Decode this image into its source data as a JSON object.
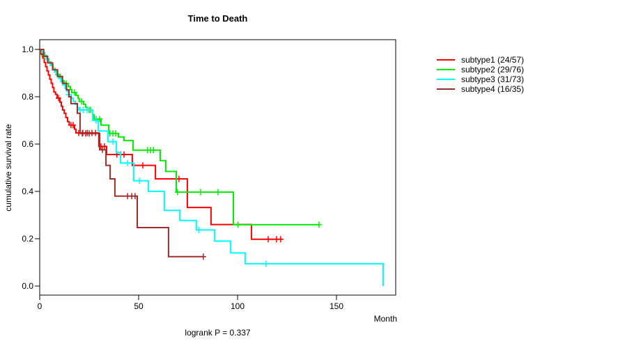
{
  "title": "Time to Death",
  "footer": "logrank P = 0.337",
  "y_axis": {
    "label": "cumulative survival rate",
    "tick_values": [
      1.0,
      0.8,
      0.6,
      0.4,
      0.2,
      0.0
    ],
    "tick_labels": [
      "1.0",
      "0.8",
      "0.6",
      "0.4",
      "0.2",
      "0.0"
    ],
    "range": [
      0.0,
      1.0
    ]
  },
  "x_axis": {
    "label": "Month",
    "tick_values": [
      0,
      50,
      100,
      150
    ],
    "tick_labels": [
      "0",
      "50",
      "100",
      "150"
    ],
    "range": [
      0,
      180
    ]
  },
  "legend": {
    "entries": [
      {
        "label": "subtype1 (24/57)",
        "color": "#FF0000"
      },
      {
        "label": "subtype2 (29/76)",
        "color": "#00EE00"
      },
      {
        "label": "subtype3 (31/73)",
        "color": "#00FFFF"
      },
      {
        "label": "subtype4 (16/35)",
        "color": "#A52A2A"
      }
    ]
  },
  "chart_data": {
    "type": "line",
    "title": "Time to Death",
    "xlabel": "Month",
    "ylabel": "cumulative survival rate",
    "xlim": [
      0,
      180
    ],
    "ylim": [
      0.0,
      1.0
    ],
    "grid": false,
    "legend_position": "right-outside",
    "annotation": "logrank P = 0.337",
    "curve_style": "kaplan-meier step-after with + censor marks",
    "series": [
      {
        "name": "subtype1 (24/57)",
        "color": "#FF0000",
        "steps": [
          [
            0,
            1.0
          ],
          [
            0.7,
            0.98
          ],
          [
            1.6,
            0.963
          ],
          [
            2.3,
            0.945
          ],
          [
            3,
            0.927
          ],
          [
            3.7,
            0.909
          ],
          [
            4.4,
            0.892
          ],
          [
            5.1,
            0.874
          ],
          [
            5.8,
            0.857
          ],
          [
            6.5,
            0.839
          ],
          [
            7.2,
            0.82
          ],
          [
            8,
            0.81
          ],
          [
            8.8,
            0.794
          ],
          [
            10.2,
            0.777
          ],
          [
            10.9,
            0.76
          ],
          [
            11.6,
            0.744
          ],
          [
            12.4,
            0.73
          ],
          [
            13.2,
            0.712
          ],
          [
            14.1,
            0.695
          ],
          [
            14.9,
            0.68
          ],
          [
            17.6,
            0.663
          ],
          [
            18.3,
            0.647
          ],
          [
            29.9,
            0.59
          ],
          [
            33.8,
            0.556
          ],
          [
            46.8,
            0.51
          ],
          [
            58.5,
            0.453
          ],
          [
            74.6,
            0.332
          ],
          [
            86.6,
            0.26
          ],
          [
            107,
            0.198
          ],
          [
            122.5,
            0.198
          ]
        ],
        "censors": [
          [
            1.3,
            0.982
          ],
          [
            9.5,
            0.794
          ],
          [
            15.8,
            0.68
          ],
          [
            16.9,
            0.68
          ],
          [
            19.7,
            0.647
          ],
          [
            21.8,
            0.647
          ],
          [
            24,
            0.647
          ],
          [
            26.4,
            0.647
          ],
          [
            28.2,
            0.647
          ],
          [
            31,
            0.59
          ],
          [
            32.7,
            0.59
          ],
          [
            39,
            0.556
          ],
          [
            41,
            0.556
          ],
          [
            42.6,
            0.556
          ],
          [
            52.1,
            0.51
          ],
          [
            70.4,
            0.453
          ],
          [
            115.5,
            0.198
          ],
          [
            119.7,
            0.198
          ],
          [
            121.8,
            0.198
          ]
        ]
      },
      {
        "name": "subtype2 (29/76)",
        "color": "#00EE00",
        "steps": [
          [
            0,
            1.0
          ],
          [
            1.1,
            0.987
          ],
          [
            2.5,
            0.974
          ],
          [
            3.5,
            0.96
          ],
          [
            4.6,
            0.947
          ],
          [
            5.6,
            0.934
          ],
          [
            6.7,
            0.92
          ],
          [
            7.7,
            0.907
          ],
          [
            8.5,
            0.894
          ],
          [
            10.2,
            0.88
          ],
          [
            11.3,
            0.868
          ],
          [
            12.3,
            0.856
          ],
          [
            14.4,
            0.843
          ],
          [
            15.5,
            0.83
          ],
          [
            16.2,
            0.818
          ],
          [
            18.3,
            0.806
          ],
          [
            19.4,
            0.793
          ],
          [
            20,
            0.78
          ],
          [
            22.2,
            0.768
          ],
          [
            23.2,
            0.756
          ],
          [
            23.9,
            0.744
          ],
          [
            26.8,
            0.724
          ],
          [
            27.5,
            0.706
          ],
          [
            31,
            0.68
          ],
          [
            34.9,
            0.645
          ],
          [
            39.8,
            0.63
          ],
          [
            42.6,
            0.615
          ],
          [
            47.2,
            0.574
          ],
          [
            60.9,
            0.53
          ],
          [
            63.7,
            0.484
          ],
          [
            69,
            0.397
          ],
          [
            97.9,
            0.259
          ],
          [
            141.2,
            0.259
          ]
        ],
        "censors": [
          [
            2.1,
            0.974
          ],
          [
            9.2,
            0.894
          ],
          [
            13.4,
            0.856
          ],
          [
            17.6,
            0.818
          ],
          [
            21.1,
            0.78
          ],
          [
            25,
            0.744
          ],
          [
            25.7,
            0.744
          ],
          [
            28.5,
            0.706
          ],
          [
            30.3,
            0.706
          ],
          [
            35.5,
            0.645
          ],
          [
            37,
            0.645
          ],
          [
            38.4,
            0.645
          ],
          [
            54.5,
            0.574
          ],
          [
            56,
            0.574
          ],
          [
            57.5,
            0.574
          ],
          [
            69.7,
            0.397
          ],
          [
            81.3,
            0.397
          ],
          [
            90.1,
            0.397
          ],
          [
            100.2,
            0.259
          ],
          [
            141.2,
            0.259
          ]
        ]
      },
      {
        "name": "subtype3 (31/73)",
        "color": "#00FFFF",
        "steps": [
          [
            0,
            1.0
          ],
          [
            1.2,
            0.986
          ],
          [
            2.3,
            0.973
          ],
          [
            3.3,
            0.959
          ],
          [
            4.4,
            0.945
          ],
          [
            5.4,
            0.932
          ],
          [
            6.5,
            0.918
          ],
          [
            7.5,
            0.904
          ],
          [
            8.6,
            0.89
          ],
          [
            9.6,
            0.877
          ],
          [
            10.7,
            0.863
          ],
          [
            11.7,
            0.85
          ],
          [
            12.8,
            0.836
          ],
          [
            13.8,
            0.822
          ],
          [
            14.8,
            0.809
          ],
          [
            15.9,
            0.795
          ],
          [
            16.9,
            0.781
          ],
          [
            18,
            0.768
          ],
          [
            19,
            0.754
          ],
          [
            19.9,
            0.744
          ],
          [
            26.8,
            0.7
          ],
          [
            29.6,
            0.655
          ],
          [
            34.5,
            0.61
          ],
          [
            38.7,
            0.565
          ],
          [
            40.8,
            0.52
          ],
          [
            47.5,
            0.445
          ],
          [
            54.9,
            0.4
          ],
          [
            63,
            0.32
          ],
          [
            70.8,
            0.277
          ],
          [
            79.2,
            0.237
          ],
          [
            88.4,
            0.19
          ],
          [
            96.5,
            0.14
          ],
          [
            103.9,
            0.094
          ],
          [
            173.6,
            0.0
          ]
        ],
        "censors": [
          [
            14.5,
            0.809
          ],
          [
            20.4,
            0.744
          ],
          [
            22,
            0.744
          ],
          [
            23.9,
            0.744
          ],
          [
            28.5,
            0.7
          ],
          [
            37,
            0.61
          ],
          [
            44.4,
            0.52
          ],
          [
            50.4,
            0.445
          ],
          [
            80.5,
            0.237
          ],
          [
            114.4,
            0.094
          ]
        ]
      },
      {
        "name": "subtype4 (16/35)",
        "color": "#A52A2A",
        "steps": [
          [
            0,
            1.0
          ],
          [
            2,
            0.971
          ],
          [
            4,
            0.943
          ],
          [
            6.5,
            0.914
          ],
          [
            9,
            0.886
          ],
          [
            11.5,
            0.857
          ],
          [
            13.5,
            0.829
          ],
          [
            14.8,
            0.8
          ],
          [
            15.8,
            0.771
          ],
          [
            19,
            0.73
          ],
          [
            20.4,
            0.645
          ],
          [
            30.3,
            0.576
          ],
          [
            33.5,
            0.51
          ],
          [
            35.6,
            0.453
          ],
          [
            38,
            0.38
          ],
          [
            49.3,
            0.247
          ],
          [
            65.1,
            0.124
          ],
          [
            82.7,
            0.124
          ]
        ],
        "censors": [
          [
            21.5,
            0.645
          ],
          [
            23.2,
            0.645
          ],
          [
            25,
            0.645
          ],
          [
            31.7,
            0.576
          ],
          [
            44.4,
            0.38
          ],
          [
            46.5,
            0.38
          ],
          [
            48.2,
            0.38
          ],
          [
            82.7,
            0.124
          ]
        ]
      }
    ]
  }
}
